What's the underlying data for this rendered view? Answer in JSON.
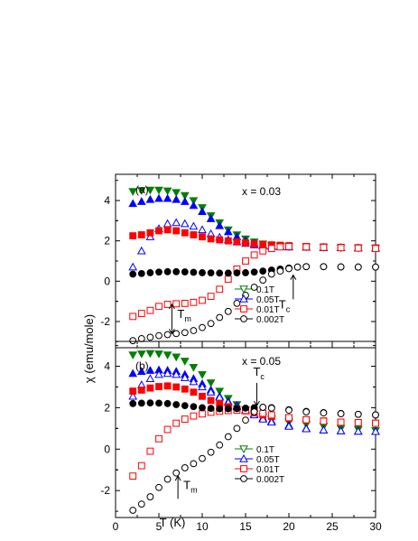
{
  "figure": {
    "ylabel": "χ (emu/mole)",
    "xlabel": "T (K)"
  },
  "chart_data": [
    {
      "panel": "(a)",
      "type": "scatter",
      "annotation": "x = 0.03",
      "xlim": [
        0,
        30
      ],
      "ylim": [
        -3.3,
        5.3
      ],
      "xticks": [
        "0",
        "5",
        "10",
        "15",
        "20",
        "25",
        "30"
      ],
      "yticks": [
        "-2",
        "0",
        "2",
        "4"
      ],
      "ytick_values": [
        -2,
        0,
        2,
        4
      ],
      "legend_position": "bottom-right",
      "markers": {
        "Tm": {
          "label": "T",
          "sub": "m",
          "x": 6.5,
          "y_from": -1.15,
          "y_to": -2.6,
          "direction": "both"
        },
        "Tc": {
          "label": "T",
          "sub": "c",
          "x": 20.5,
          "y_from": -0.9,
          "y_to": 0.3,
          "direction": "up"
        }
      },
      "series": [
        {
          "name": "0.1T",
          "marker": "triangle-down",
          "color": "#008000",
          "fill": "partial",
          "x": [
            2,
            3,
            4,
            5,
            6,
            7,
            8,
            9,
            10,
            11,
            12,
            13,
            14,
            15,
            16,
            17,
            18,
            19,
            20,
            22,
            24,
            26,
            28,
            30
          ],
          "y": [
            4.45,
            4.5,
            4.52,
            4.52,
            4.48,
            4.4,
            4.25,
            4.0,
            3.65,
            3.25,
            2.9,
            2.55,
            2.3,
            2.1,
            1.95,
            1.85,
            1.78,
            1.74,
            1.72,
            1.7,
            1.68,
            1.66,
            1.65,
            1.64
          ]
        },
        {
          "name": "0.05T",
          "marker": "triangle-up",
          "color": "#0000ff",
          "fill": "partial",
          "x": [
            2,
            3,
            4,
            5,
            6,
            7,
            8,
            9,
            10,
            11,
            12,
            13,
            14,
            15,
            16,
            17,
            18,
            19,
            20,
            22,
            24,
            26,
            28,
            30
          ],
          "y": [
            3.85,
            3.95,
            4.05,
            4.1,
            4.1,
            4.05,
            3.95,
            3.75,
            3.45,
            3.1,
            2.75,
            2.45,
            2.2,
            2.0,
            1.88,
            1.8,
            1.75,
            1.72,
            1.7,
            1.68,
            1.67,
            1.66,
            1.65,
            1.64
          ]
        },
        {
          "name": "0.05T open",
          "marker": "triangle-up",
          "color": "#0000ff",
          "fill": "open",
          "x": [
            2,
            3,
            4,
            5,
            6,
            7,
            8,
            9,
            10,
            11,
            12,
            13,
            14,
            15,
            16,
            17,
            18,
            19,
            20,
            22,
            24,
            26,
            28,
            30
          ],
          "y": [
            0.7,
            1.5,
            2.2,
            2.6,
            2.85,
            2.9,
            2.85,
            2.72,
            2.55,
            2.35,
            2.18,
            2.05,
            1.95,
            1.87,
            1.8,
            1.76,
            1.73,
            1.71,
            1.7,
            1.68,
            1.67,
            1.66,
            1.65,
            1.64
          ]
        },
        {
          "name": "0.01T",
          "marker": "square",
          "color": "#ff0000",
          "fill": "full",
          "x": [
            2,
            3,
            4,
            5,
            6,
            7,
            8,
            9,
            10,
            11,
            12,
            13,
            14,
            15,
            16,
            17,
            18,
            19,
            20,
            22,
            24,
            26,
            28,
            30
          ],
          "y": [
            2.25,
            2.3,
            2.4,
            2.5,
            2.55,
            2.5,
            2.4,
            2.3,
            2.2,
            2.1,
            2.05,
            2.0,
            1.95,
            1.9,
            1.85,
            1.82,
            1.8,
            1.78,
            1.76,
            1.72,
            1.7,
            1.68,
            1.66,
            1.65
          ]
        },
        {
          "name": "0.01T open",
          "marker": "square",
          "color": "#ff0000",
          "fill": "open",
          "x": [
            2,
            3,
            4,
            5,
            6,
            7,
            8,
            9,
            10,
            11,
            12,
            13,
            14,
            15,
            16,
            17,
            18,
            19,
            20,
            22,
            24,
            26,
            28,
            30
          ],
          "y": [
            -1.75,
            -1.6,
            -1.45,
            -1.25,
            -1.15,
            -1.12,
            -1.1,
            -1.05,
            -0.95,
            -0.75,
            -0.4,
            0.1,
            0.6,
            1.0,
            1.3,
            1.5,
            1.62,
            1.7,
            1.72,
            1.7,
            1.68,
            1.66,
            1.64,
            1.62
          ]
        },
        {
          "name": "0.002T",
          "marker": "circle",
          "color": "#000000",
          "fill": "full",
          "x": [
            2,
            3,
            4,
            5,
            6,
            7,
            8,
            9,
            10,
            11,
            12,
            13,
            14,
            15,
            16,
            17,
            18,
            19,
            20,
            21,
            22,
            24,
            26,
            28,
            30
          ],
          "y": [
            0.35,
            0.38,
            0.42,
            0.45,
            0.47,
            0.47,
            0.46,
            0.44,
            0.42,
            0.41,
            0.4,
            0.4,
            0.41,
            0.42,
            0.45,
            0.5,
            0.55,
            0.6,
            0.65,
            0.7,
            0.72,
            0.72,
            0.71,
            0.7,
            0.7
          ]
        },
        {
          "name": "0.002T open",
          "marker": "circle",
          "color": "#000000",
          "fill": "open",
          "x": [
            2,
            3,
            4,
            5,
            6,
            7,
            8,
            9,
            10,
            11,
            12,
            13,
            14,
            15,
            16,
            17,
            18,
            19,
            20,
            21,
            22,
            24,
            26,
            28,
            30
          ],
          "y": [
            -2.95,
            -2.85,
            -2.78,
            -2.7,
            -2.65,
            -2.6,
            -2.55,
            -2.45,
            -2.3,
            -2.1,
            -1.8,
            -1.5,
            -1.1,
            -0.7,
            -0.3,
            0.05,
            0.35,
            0.5,
            0.62,
            0.7,
            0.72,
            0.72,
            0.71,
            0.7,
            0.7
          ]
        }
      ],
      "legend": [
        {
          "label": "0.1T",
          "marker": "triangle-down",
          "color": "#008000"
        },
        {
          "label": "0.05T",
          "marker": "triangle-up",
          "color": "#0000ff"
        },
        {
          "label": "0.01T",
          "marker": "square",
          "color": "#ff0000"
        },
        {
          "label": "0.002T",
          "marker": "circle",
          "color": "#000000"
        }
      ]
    },
    {
      "panel": "(b)",
      "type": "scatter",
      "annotation": "x = 0.05",
      "xlim": [
        0,
        30
      ],
      "ylim": [
        -3.3,
        5.2
      ],
      "xticks": [
        "0",
        "5",
        "10",
        "15",
        "20",
        "25",
        "30"
      ],
      "yticks": [
        "-2",
        "0",
        "2",
        "4"
      ],
      "ytick_values": [
        -2,
        0,
        2,
        4
      ],
      "legend_position": "bottom-right",
      "markers": {
        "Tc": {
          "label": "T",
          "sub": "c",
          "x": 16.3,
          "y_from": 3.2,
          "y_to": 2.1,
          "direction": "down"
        },
        "Tm": {
          "label": "T",
          "sub": "m",
          "x": 7.2,
          "y_from": -2.4,
          "y_to": -1.3,
          "direction": "up"
        }
      },
      "series": [
        {
          "name": "0.1T",
          "marker": "triangle-down",
          "color": "#008000",
          "fill": "partial",
          "x": [
            2,
            3,
            4,
            5,
            6,
            7,
            8,
            9,
            10,
            11,
            12,
            13,
            14,
            15,
            16,
            17,
            18,
            20,
            22,
            24,
            26,
            28,
            30
          ],
          "y": [
            4.55,
            4.6,
            4.62,
            4.6,
            4.55,
            4.45,
            4.25,
            3.95,
            3.6,
            3.2,
            2.8,
            2.45,
            2.15,
            1.9,
            1.7,
            1.55,
            1.45,
            1.3,
            1.2,
            1.1,
            1.0,
            0.95,
            0.9
          ]
        },
        {
          "name": "0.05T",
          "marker": "triangle-up",
          "color": "#0000ff",
          "fill": "partial",
          "x": [
            2,
            3,
            4,
            5,
            6,
            7,
            8,
            9,
            10,
            11,
            12,
            13,
            14,
            15,
            16,
            17,
            18,
            20,
            22,
            24,
            26,
            28,
            30
          ],
          "y": [
            3.65,
            3.75,
            3.8,
            3.82,
            3.8,
            3.75,
            3.6,
            3.4,
            3.15,
            2.85,
            2.55,
            2.3,
            2.1,
            1.9,
            1.7,
            1.5,
            1.35,
            1.15,
            1.0,
            0.92,
            0.88,
            0.86,
            0.85
          ]
        },
        {
          "name": "0.05T open",
          "marker": "triangle-up",
          "color": "#0000ff",
          "fill": "open",
          "x": [
            2,
            3,
            4,
            5,
            6,
            7,
            8,
            9,
            10,
            11,
            12,
            13,
            14,
            15,
            16,
            17,
            18,
            20,
            22,
            24,
            26,
            28,
            30
          ],
          "y": [
            2.55,
            3.1,
            3.4,
            3.6,
            3.65,
            3.6,
            3.45,
            3.25,
            3.0,
            2.75,
            2.5,
            2.25,
            2.05,
            1.85,
            1.65,
            1.45,
            1.3,
            1.1,
            0.98,
            0.92,
            0.88,
            0.86,
            0.85
          ]
        },
        {
          "name": "0.01T",
          "marker": "square",
          "color": "#ff0000",
          "fill": "full",
          "x": [
            2,
            3,
            4,
            5,
            6,
            7,
            8,
            9,
            10,
            11,
            12,
            13,
            14,
            15,
            16,
            17,
            18,
            20,
            22,
            24,
            26,
            28,
            30
          ],
          "y": [
            2.8,
            2.85,
            2.95,
            3.02,
            3.05,
            3.0,
            2.9,
            2.75,
            2.55,
            2.35,
            2.2,
            2.05,
            1.95,
            1.85,
            1.75,
            1.65,
            1.58,
            1.5,
            1.42,
            1.36,
            1.3,
            1.28,
            1.25
          ]
        },
        {
          "name": "0.01T open",
          "marker": "square",
          "color": "#ff0000",
          "fill": "open",
          "x": [
            2,
            3,
            4,
            5,
            6,
            7,
            8,
            9,
            10,
            11,
            12,
            13,
            14,
            15,
            16,
            17,
            18,
            20,
            22,
            24,
            26,
            28,
            30
          ],
          "y": [
            -1.3,
            -0.8,
            -0.1,
            0.5,
            0.95,
            1.25,
            1.45,
            1.6,
            1.7,
            1.78,
            1.83,
            1.86,
            1.88,
            1.87,
            1.82,
            1.73,
            1.65,
            1.52,
            1.42,
            1.35,
            1.3,
            1.28,
            1.25
          ]
        },
        {
          "name": "0.002T",
          "marker": "circle",
          "color": "#000000",
          "fill": "full",
          "x": [
            2,
            3,
            4,
            5,
            6,
            7,
            8,
            9,
            10,
            11,
            12,
            13,
            14,
            15,
            16,
            17,
            18,
            20,
            22,
            24,
            26,
            28,
            30
          ],
          "y": [
            2.2,
            2.22,
            2.23,
            2.22,
            2.2,
            2.15,
            2.1,
            2.05,
            2.0,
            1.97,
            1.95,
            1.95,
            1.96,
            1.98,
            2.0,
            2.02,
            2.0,
            1.9,
            1.82,
            1.76,
            1.72,
            1.68,
            1.65
          ]
        },
        {
          "name": "0.002T open",
          "marker": "circle",
          "color": "#000000",
          "fill": "open",
          "x": [
            2,
            3,
            4,
            5,
            6,
            7,
            8,
            9,
            10,
            11,
            12,
            13,
            14,
            15,
            16,
            17,
            18,
            20,
            22,
            24,
            26,
            28,
            30
          ],
          "y": [
            -2.95,
            -2.65,
            -2.3,
            -1.85,
            -1.45,
            -1.15,
            -0.9,
            -0.7,
            -0.45,
            -0.15,
            0.2,
            0.6,
            1.0,
            1.4,
            1.8,
            2.02,
            1.98,
            1.88,
            1.8,
            1.75,
            1.71,
            1.68,
            1.65
          ]
        }
      ],
      "legend": [
        {
          "label": "0.1T",
          "marker": "triangle-down",
          "color": "#008000"
        },
        {
          "label": "0.05T",
          "marker": "triangle-up",
          "color": "#0000ff"
        },
        {
          "label": "0.01T",
          "marker": "square",
          "color": "#ff0000"
        },
        {
          "label": "0.002T",
          "marker": "circle",
          "color": "#000000"
        }
      ]
    }
  ]
}
